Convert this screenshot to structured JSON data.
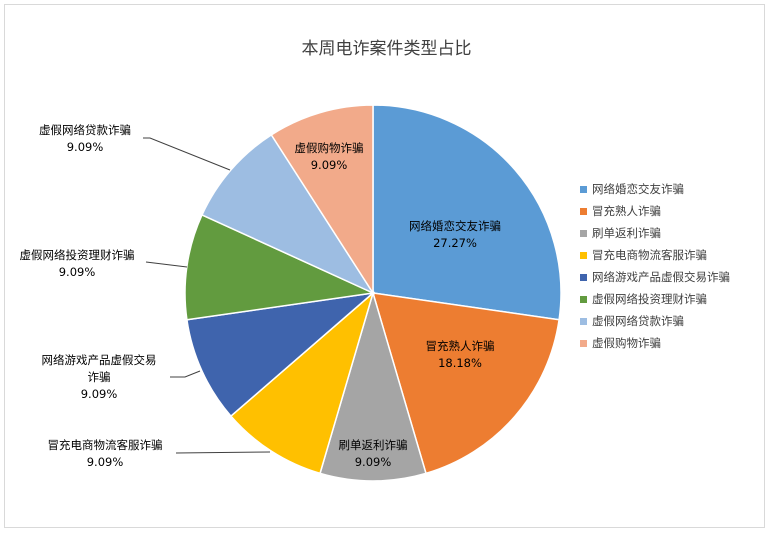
{
  "chart_data": {
    "type": "pie",
    "title": "本周电诈案件类型占比",
    "legend_position": "right",
    "start": "top, clockwise",
    "slices": [
      {
        "name": "网络婚恋交友诈骗",
        "value": 27.27,
        "label": "27.27%",
        "color": "#5B9BD5"
      },
      {
        "name": "冒充熟人诈骗",
        "value": 18.18,
        "label": "18.18%",
        "color": "#ED7D31"
      },
      {
        "name": "刷单返利诈骗",
        "value": 9.09,
        "label": "9.09%",
        "color": "#A5A5A5"
      },
      {
        "name": "冒充电商物流客服诈骗",
        "value": 9.09,
        "label": "9.09%",
        "color": "#FFC000"
      },
      {
        "name": "网络游戏产品虚假交易诈骗",
        "value": 9.09,
        "label": "9.09%",
        "color": "#3F64AD"
      },
      {
        "name": "虚假网络投资理财诈骗",
        "value": 9.09,
        "label": "9.09%",
        "color": "#629B3F"
      },
      {
        "name": "虚假网络贷款诈骗",
        "value": 9.09,
        "label": "9.09%",
        "color": "#9DBDE2"
      },
      {
        "name": "虚假购物诈骗",
        "value": 9.09,
        "label": "9.09%",
        "color": "#F2AA8A"
      }
    ]
  }
}
